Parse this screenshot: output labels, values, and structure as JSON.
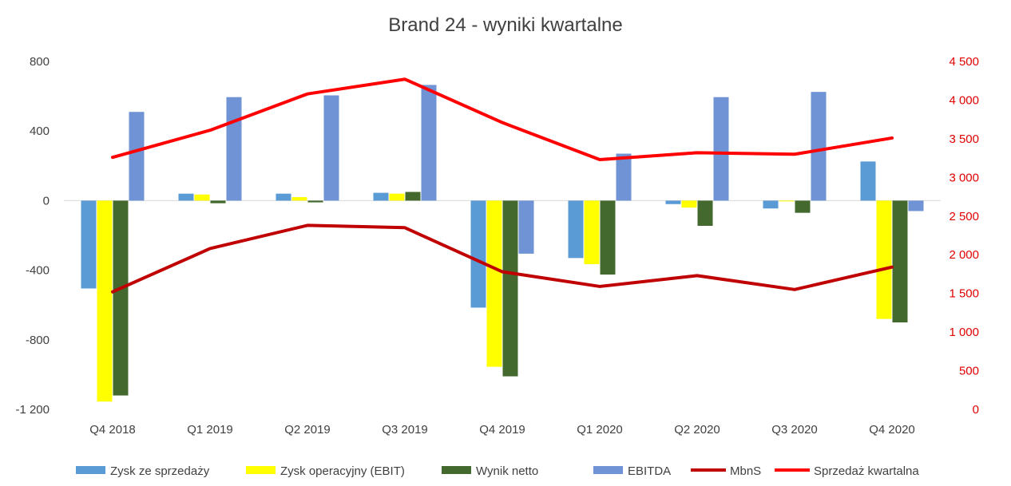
{
  "chart_data": {
    "type": "bar",
    "title": "Brand 24 - wyniki kwartalne",
    "categories": [
      "Q4 2018",
      "Q1 2019",
      "Q2 2019",
      "Q3 2019",
      "Q4 2019",
      "Q1 2020",
      "Q2 2020",
      "Q3 2020",
      "Q4 2020"
    ],
    "left_axis": {
      "min": -1200,
      "max": 800,
      "ticks": [
        800,
        400,
        0,
        -400,
        -800,
        -1200
      ],
      "tick_labels": [
        "800",
        "400",
        "0",
        "-400",
        "-800",
        "-1 200"
      ]
    },
    "right_axis": {
      "min": 0,
      "max": 4500,
      "ticks": [
        4500,
        4000,
        3500,
        3000,
        2500,
        2000,
        1500,
        1000,
        500,
        0
      ],
      "tick_labels": [
        "4 500",
        "4 000",
        "3 500",
        "3 000",
        "2 500",
        "2 000",
        "1 500",
        "1 000",
        "500",
        "0"
      ],
      "color": "#e00000"
    },
    "series": [
      {
        "name": "Zysk ze sprzedaży",
        "kind": "bar",
        "axis": "left",
        "color": "#5b9bd5",
        "values": [
          -505,
          40,
          40,
          45,
          -615,
          -330,
          -20,
          -45,
          225
        ]
      },
      {
        "name": "Zysk operacyjny (EBIT)",
        "kind": "bar",
        "axis": "left",
        "color": "#ffff00",
        "values": [
          -1155,
          35,
          20,
          40,
          -955,
          -365,
          -40,
          0,
          -680
        ]
      },
      {
        "name": "Wynik netto",
        "kind": "bar",
        "axis": "left",
        "color": "#44692e",
        "values": [
          -1120,
          -15,
          -10,
          50,
          -1010,
          -425,
          -145,
          -70,
          -700
        ]
      },
      {
        "name": "EBITDA",
        "kind": "bar",
        "axis": "left",
        "color": "#6f93d4",
        "values": [
          510,
          595,
          605,
          665,
          -305,
          270,
          595,
          625,
          -60
        ]
      },
      {
        "name": "MbnS",
        "kind": "line",
        "axis": "right",
        "color": "#c00000",
        "values": [
          1520,
          2080,
          2380,
          2350,
          1780,
          1590,
          1730,
          1550,
          1840
        ]
      },
      {
        "name": "Sprzedaż kwartalna",
        "kind": "line",
        "axis": "right",
        "color": "#ff0000",
        "values": [
          3260,
          3610,
          4080,
          4270,
          3710,
          3230,
          3320,
          3300,
          3510
        ]
      }
    ],
    "legend": "bottom",
    "grid": false
  }
}
